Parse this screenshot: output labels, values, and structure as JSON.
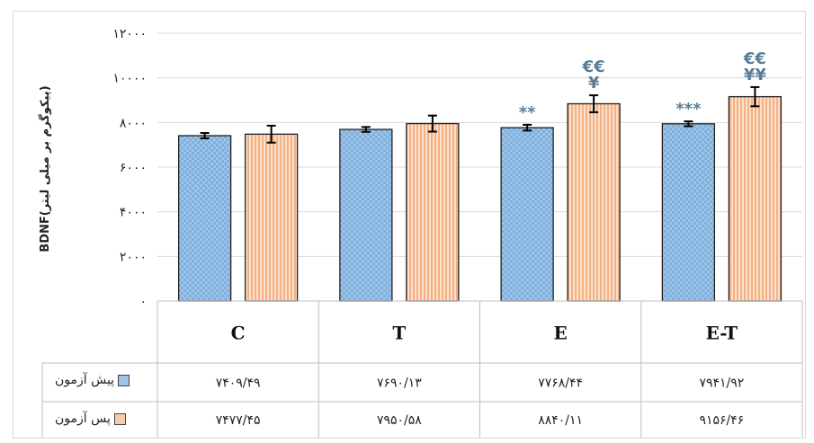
{
  "chart_data": {
    "type": "bar",
    "ylabel": "BDNF(پیکوگرم بر میلی لیتر)",
    "ylim": [
      0,
      12000
    ],
    "yticks": [
      0,
      2000,
      4000,
      6000,
      8000,
      10000,
      12000
    ],
    "ytick_labels": [
      "۰",
      "۲۰۰۰",
      "۴۰۰۰",
      "۶۰۰۰",
      "۸۰۰۰",
      "۱۰۰۰۰",
      "۱۲۰۰۰"
    ],
    "categories": [
      "C",
      "T",
      "E",
      "E-T"
    ],
    "grid": true,
    "series": [
      {
        "name": "پیش آزمون",
        "color": "#9dc3e6",
        "values": [
          7409.49,
          7690.13,
          7768.44,
          7941.92
        ],
        "errors": [
          120,
          110,
          130,
          110
        ],
        "value_labels": [
          "۷۴۰۹/۴۹",
          "۷۶۹۰/۱۳",
          "۷۷۶۸/۴۴",
          "۷۹۴۱/۹۲"
        ]
      },
      {
        "name": "پس آزمون",
        "color": "#f8cbad",
        "values": [
          7477.45,
          7950.58,
          8840.11,
          9156.46
        ],
        "errors": [
          380,
          360,
          380,
          430
        ],
        "value_labels": [
          "۷۴۷۷/۴۵",
          "۷۹۵۰/۵۸",
          "۸۸۴۰/۱۱",
          "۹۱۵۶/۴۶"
        ]
      }
    ],
    "annotations": [
      {
        "category": "E",
        "series": 0,
        "lines": [
          "**"
        ]
      },
      {
        "category": "E",
        "series": 1,
        "lines": [
          "€€",
          "¥"
        ]
      },
      {
        "category": "E-T",
        "series": 0,
        "lines": [
          "***"
        ]
      },
      {
        "category": "E-T",
        "series": 1,
        "lines": [
          "€€",
          "¥¥"
        ]
      }
    ]
  }
}
